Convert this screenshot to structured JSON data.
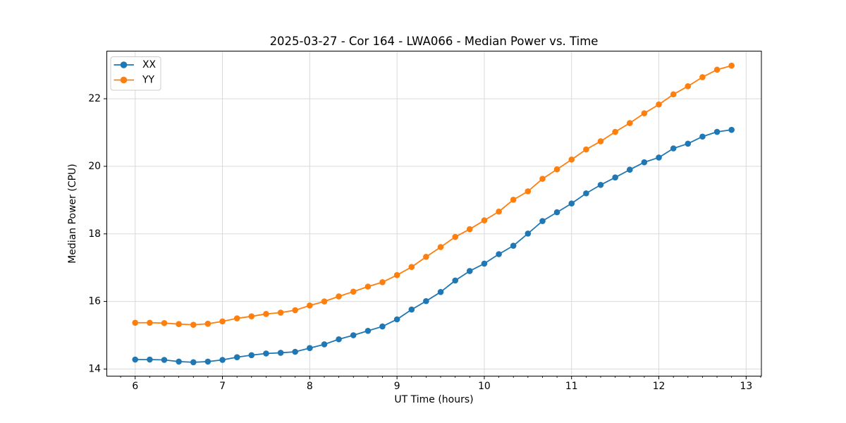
{
  "figure": {
    "background": "#ffffff"
  },
  "chart_data": {
    "type": "line",
    "title": "2025-03-27 - Cor 164 - LWA066 - Median Power vs. Time",
    "xlabel": "UT Time (hours)",
    "ylabel": "Median Power (CPU)",
    "xlim": [
      5.675,
      13.175
    ],
    "ylim": [
      13.79,
      23.41
    ],
    "x_major_ticks": [
      6,
      7,
      8,
      9,
      10,
      11,
      12,
      13
    ],
    "y_major_ticks": [
      14,
      16,
      18,
      20,
      22
    ],
    "x_minor_step_hours": 0.1667,
    "grid": "major",
    "legend": {
      "position": "upper-left",
      "entries": [
        "XX",
        "YY"
      ]
    },
    "style": {
      "grid_color": "#d9d9d9",
      "spine_color": "#000000",
      "text_color": "#000000",
      "legend_border_color": "#cccccc",
      "legend_bg_color": "#ffffff"
    },
    "x": [
      6.0,
      6.167,
      6.333,
      6.5,
      6.667,
      6.833,
      7.0,
      7.167,
      7.333,
      7.5,
      7.667,
      7.833,
      8.0,
      8.167,
      8.333,
      8.5,
      8.667,
      8.833,
      9.0,
      9.167,
      9.333,
      9.5,
      9.667,
      9.833,
      10.0,
      10.167,
      10.333,
      10.5,
      10.667,
      10.833,
      11.0,
      11.167,
      11.333,
      11.5,
      11.667,
      11.833,
      12.0,
      12.167,
      12.333,
      12.5,
      12.667,
      12.833
    ],
    "series": [
      {
        "name": "XX",
        "color": "#1f77b4",
        "values": [
          14.28,
          14.28,
          14.27,
          14.22,
          14.2,
          14.22,
          14.27,
          14.35,
          14.41,
          14.46,
          14.48,
          14.51,
          14.62,
          14.73,
          14.88,
          15.0,
          15.13,
          15.26,
          15.47,
          15.76,
          16.01,
          16.28,
          16.62,
          16.9,
          17.12,
          17.4,
          17.65,
          18.01,
          18.38,
          18.64,
          18.9,
          19.2,
          19.45,
          19.67,
          19.9,
          20.12,
          20.26,
          20.53,
          20.67,
          20.88,
          21.02,
          21.08
        ]
      },
      {
        "name": "YY",
        "color": "#ff7f0e",
        "values": [
          15.37,
          15.37,
          15.36,
          15.33,
          15.31,
          15.34,
          15.41,
          15.5,
          15.56,
          15.63,
          15.67,
          15.74,
          15.88,
          16.0,
          16.15,
          16.29,
          16.44,
          16.57,
          16.78,
          17.02,
          17.32,
          17.61,
          17.91,
          18.14,
          18.4,
          18.66,
          19.01,
          19.26,
          19.63,
          19.91,
          20.2,
          20.5,
          20.74,
          21.02,
          21.28,
          21.57,
          21.83,
          22.13,
          22.37,
          22.64,
          22.86,
          22.98
        ]
      }
    ]
  }
}
